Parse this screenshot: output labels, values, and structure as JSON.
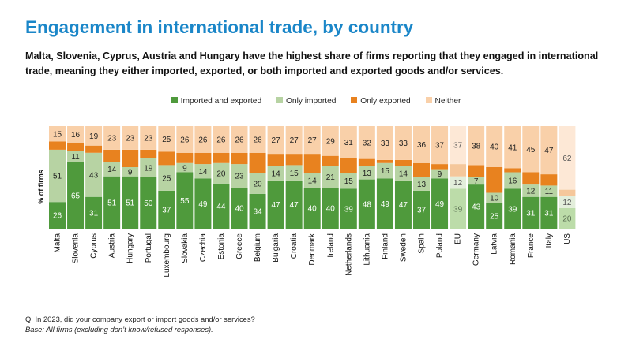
{
  "title": "Engagement in international trade, by country",
  "subtitle": "Malta, Slovenia, Cyprus, Austria and Hungary have the highest share of firms reporting that they engaged in international trade, meaning they either imported, exported, or both imported and exported goods and/or services.",
  "yaxis_label": "% of firms",
  "footnote": {
    "question": "Q. In 2023, did your company export or import goods and/or services?",
    "base": "Base: All firms (excluding don’t know/refused responses)."
  },
  "colors": {
    "imported_and_exported": "#4f9a3c",
    "only_imported": "#b7d3a3",
    "only_exported": "#e8821f",
    "neither": "#f9d0a9"
  },
  "chart_data": {
    "type": "bar",
    "stacked": true,
    "percent": true,
    "ylim": [
      0,
      100
    ],
    "grid": false,
    "legend_position": "top",
    "categories": [
      "Malta",
      "Slovenia",
      "Cyprus",
      "Austria",
      "Hungary",
      "Portugal",
      "Luxembourg",
      "Slovakia",
      "Czechia",
      "Estonia",
      "Greece",
      "Belgium",
      "Bulgaria",
      "Croatia",
      "Denmark",
      "Ireland",
      "Netherlands",
      "Lithuania",
      "Finland",
      "Sweden",
      "Spain",
      "Poland",
      "EU",
      "Germany",
      "Latvia",
      "Romania",
      "France",
      "Italy",
      "US"
    ],
    "highlight_categories": [
      "EU",
      "US"
    ],
    "series": [
      {
        "name": "Imported and exported",
        "values": [
          26,
          65,
          31,
          51,
          51,
          50,
          37,
          55,
          49,
          44,
          40,
          34,
          47,
          47,
          40,
          40,
          39,
          48,
          49,
          47,
          37,
          49,
          39,
          43,
          25,
          39,
          31,
          31,
          20
        ]
      },
      {
        "name": "Only imported",
        "values": [
          51,
          11,
          43,
          14,
          9,
          19,
          25,
          9,
          14,
          20,
          23,
          20,
          14,
          15,
          14,
          21,
          15,
          13,
          15,
          14,
          13,
          9,
          12,
          7,
          10,
          16,
          12,
          11,
          12
        ]
      },
      {
        "name": "Only exported",
        "values": [
          8,
          8,
          7,
          12,
          17,
          8,
          13,
          10,
          11,
          10,
          11,
          20,
          12,
          11,
          19,
          10,
          15,
          7,
          3,
          6,
          14,
          5,
          12,
          12,
          25,
          4,
          12,
          11,
          6
        ]
      },
      {
        "name": "Neither",
        "values": [
          15,
          16,
          19,
          23,
          23,
          23,
          25,
          26,
          26,
          26,
          26,
          26,
          27,
          27,
          27,
          29,
          31,
          32,
          33,
          33,
          36,
          37,
          37,
          38,
          40,
          41,
          45,
          47,
          62
        ]
      }
    ],
    "data_labels": [
      {
        "series": "Imported and exported",
        "labels": [
          "26",
          "65",
          "31",
          "51",
          "51",
          "50",
          "37",
          "55",
          "49",
          "44",
          "40",
          "34",
          "47",
          "47",
          "40",
          "40",
          "39",
          "48",
          "49",
          "47",
          "37",
          "49",
          "39",
          "43",
          "25",
          "39",
          "31",
          "31",
          "20"
        ]
      },
      {
        "series": "Only imported",
        "labels": [
          "51",
          "11",
          "43",
          "14",
          "9",
          "19",
          "25",
          "9",
          "14",
          "20",
          "23",
          "20",
          "14",
          "15",
          "14",
          "21",
          "15",
          "13",
          "15",
          "14",
          "13",
          "9",
          "12",
          "7",
          "10",
          "16",
          "12",
          "11",
          "12"
        ]
      },
      {
        "series": "Only exported",
        "labels": [
          "",
          "",
          "",
          "",
          "",
          "",
          "",
          "",
          "",
          "",
          "",
          "",
          "",
          "",
          "",
          "",
          "",
          "",
          "",
          "",
          "",
          "",
          "",
          "",
          "",
          "",
          "",
          "",
          ""
        ]
      },
      {
        "series": "Neither",
        "labels": [
          "15",
          "16",
          "19",
          "23",
          "23",
          "23",
          "25",
          "26",
          "26",
          "26",
          "26",
          "26",
          "27",
          "27",
          "27",
          "29",
          "31",
          "32",
          "33",
          "33",
          "36",
          "37",
          "37",
          "38",
          "40",
          "41",
          "45",
          "47",
          "62"
        ]
      }
    ]
  }
}
